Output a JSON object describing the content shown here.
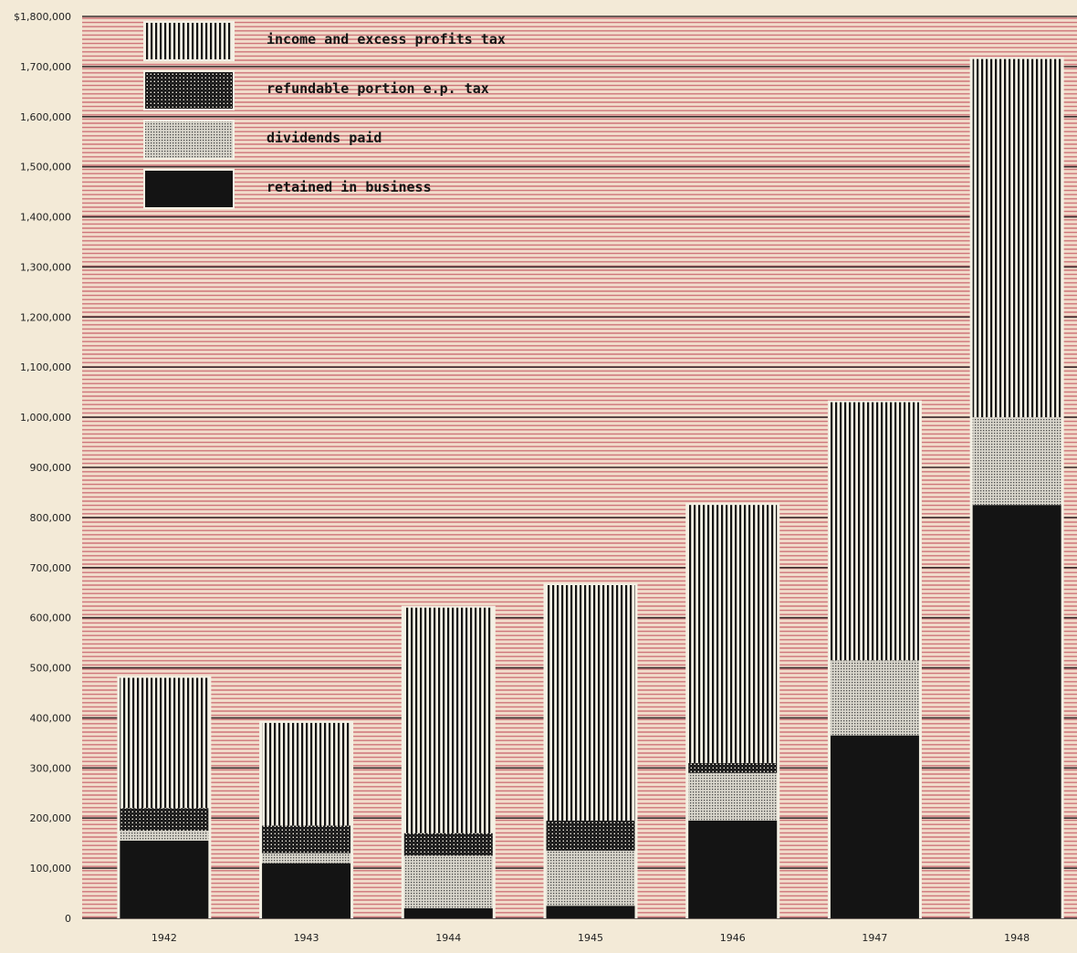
{
  "chart_data": {
    "type": "bar",
    "stacked": true,
    "categories": [
      "1942",
      "1943",
      "1944",
      "1945",
      "1946",
      "1947",
      "1948"
    ],
    "series": [
      {
        "name": "retained in business",
        "pattern": "solid",
        "values": [
          155000,
          110000,
          20000,
          25000,
          195000,
          365000,
          825000
        ]
      },
      {
        "name": "dividends paid",
        "pattern": "fine-dots",
        "values": [
          20000,
          20000,
          105000,
          110000,
          95000,
          150000,
          175000
        ]
      },
      {
        "name": "refundable portion e.p. tax",
        "pattern": "checker",
        "values": [
          45000,
          55000,
          45000,
          60000,
          20000,
          0,
          0
        ]
      },
      {
        "name": "income and excess profits tax",
        "pattern": "vertical-stripes",
        "values": [
          260000,
          205000,
          450000,
          470000,
          515000,
          515000,
          715000
        ]
      }
    ],
    "legend_order": [
      "income and excess profits tax",
      "refundable portion e.p. tax",
      "dividends paid",
      "retained in business"
    ],
    "legend_placement": "top-left",
    "y_tick_labels": [
      "0",
      "100,000",
      "200,000",
      "300,000",
      "400,000",
      "500,000",
      "600,000",
      "700,000",
      "800,000",
      "900,000",
      "1,000,000",
      "1,100,000",
      "1,200,000",
      "1,300,000",
      "1,400,000",
      "1,500,000",
      "1,600,000",
      "1,700,000",
      "$1,800,000"
    ],
    "ylim": [
      0,
      1800000
    ],
    "grid": true,
    "title": "",
    "xlabel": "",
    "ylabel": ""
  },
  "colors": {
    "background": "#f3ead7",
    "plot_background": "#f1dccb",
    "stripe_red": "#c9626b",
    "major_gridline": "#3a3030",
    "bar_ink": "#141414",
    "bar_paper": "#f4f0e4",
    "axis_text": "#222222"
  }
}
